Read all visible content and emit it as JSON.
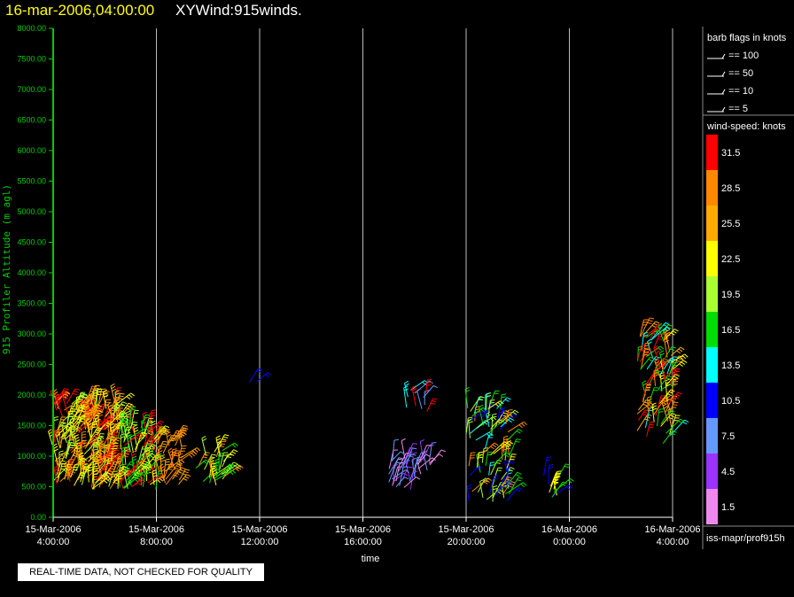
{
  "header": {
    "time_label": "16-mar-2006,04:00:00",
    "plot_label": "XYWind:915winds."
  },
  "footer": {
    "qc_notice": "REAL-TIME DATA, NOT CHECKED FOR QUALITY",
    "source": "iss-mapr/prof915h"
  },
  "colors": {
    "background": "#000000",
    "axis_y": "#00cc00",
    "axis_x": "#ffffff",
    "gridline": "#bbbbbb",
    "title_time": "#ffff00"
  },
  "chart_data": {
    "type": "wind-barb time-height",
    "title": "XYWind:915winds.",
    "ylabel": "915 Profiler Altitude (m agl)",
    "xlabel": "time",
    "ylim": [
      0,
      8000
    ],
    "yticks": [
      "0.00",
      "500.00",
      "1000.00",
      "1500.00",
      "2000.00",
      "2500.00",
      "3000.00",
      "3500.00",
      "4000.00",
      "4500.00",
      "5000.00",
      "5500.00",
      "6000.00",
      "6500.00",
      "7000.00",
      "7500.00",
      "8000.00"
    ],
    "xlim_hours": [
      4,
      28
    ],
    "xticks": [
      {
        "date": "15-Mar-2006",
        "time": "4:00:00"
      },
      {
        "date": "15-Mar-2006",
        "time": "8:00:00"
      },
      {
        "date": "15-Mar-2006",
        "time": "12:00:00"
      },
      {
        "date": "15-Mar-2006",
        "time": "16:00:00"
      },
      {
        "date": "15-Mar-2006",
        "time": "20:00:00"
      },
      {
        "date": "16-Mar-2006",
        "time": "0:00:00"
      },
      {
        "date": "16-Mar-2006",
        "time": "4:00:00"
      }
    ],
    "grid": true,
    "barb_legend": {
      "title": "barb flags in knots",
      "entries": [
        "== 100",
        "== 50",
        "== 10",
        "== 5"
      ]
    },
    "colorbar": {
      "title": "wind-speed: knots",
      "labels": [
        "31.5",
        "28.5",
        "25.5",
        "22.5",
        "19.5",
        "16.5",
        "13.5",
        "10.5",
        "7.5",
        "4.5",
        "1.5"
      ],
      "colors": [
        "#ff0000",
        "#ff8800",
        "#ffaa00",
        "#ffff00",
        "#aaff33",
        "#00dd00",
        "#00ffff",
        "#0000ff",
        "#6699ff",
        "#9933ff",
        "#ee88ee"
      ]
    },
    "barb_groups": [
      {
        "hours": [
          4.0,
          6.5
        ],
        "alt": [
          450,
          1900
        ],
        "speeds": [
          31.5,
          28.5,
          22.5,
          25.5,
          19.5
        ],
        "density": 240
      },
      {
        "hours": [
          6.5,
          8.0
        ],
        "alt": [
          450,
          1500
        ],
        "speeds": [
          22.5,
          19.5,
          31.5,
          16.5
        ],
        "density": 90
      },
      {
        "hours": [
          8.0,
          9.0
        ],
        "alt": [
          500,
          1300
        ],
        "speeds": [
          28.5,
          25.5
        ],
        "density": 30
      },
      {
        "hours": [
          9.5,
          10.8
        ],
        "alt": [
          500,
          1100
        ],
        "speeds": [
          22.5,
          16.5,
          19.5,
          28.5
        ],
        "density": 28
      },
      {
        "hours": [
          11.5,
          11.9
        ],
        "alt": [
          2200,
          2400
        ],
        "speeds": [
          10.5
        ],
        "density": 2
      },
      {
        "hours": [
          17.0,
          18.6
        ],
        "alt": [
          450,
          1000
        ],
        "speeds": [
          4.5,
          7.5,
          1.5
        ],
        "density": 40
      },
      {
        "hours": [
          17.3,
          18.5
        ],
        "alt": [
          1700,
          2100
        ],
        "speeds": [
          7.5,
          4.5,
          31.5,
          13.5
        ],
        "density": 10
      },
      {
        "hours": [
          20.0,
          21.7
        ],
        "alt": [
          250,
          1800
        ],
        "speeds": [
          16.5,
          22.5,
          28.5,
          13.5,
          10.5,
          19.5
        ],
        "density": 75
      },
      {
        "hours": [
          23.0,
          23.6
        ],
        "alt": [
          300,
          700
        ],
        "speeds": [
          16.5,
          22.5,
          10.5
        ],
        "density": 10
      },
      {
        "hours": [
          26.6,
          28.0
        ],
        "alt": [
          1200,
          3000
        ],
        "speeds": [
          31.5,
          28.5,
          22.5,
          16.5,
          13.5,
          25.5
        ],
        "density": 80
      }
    ]
  }
}
